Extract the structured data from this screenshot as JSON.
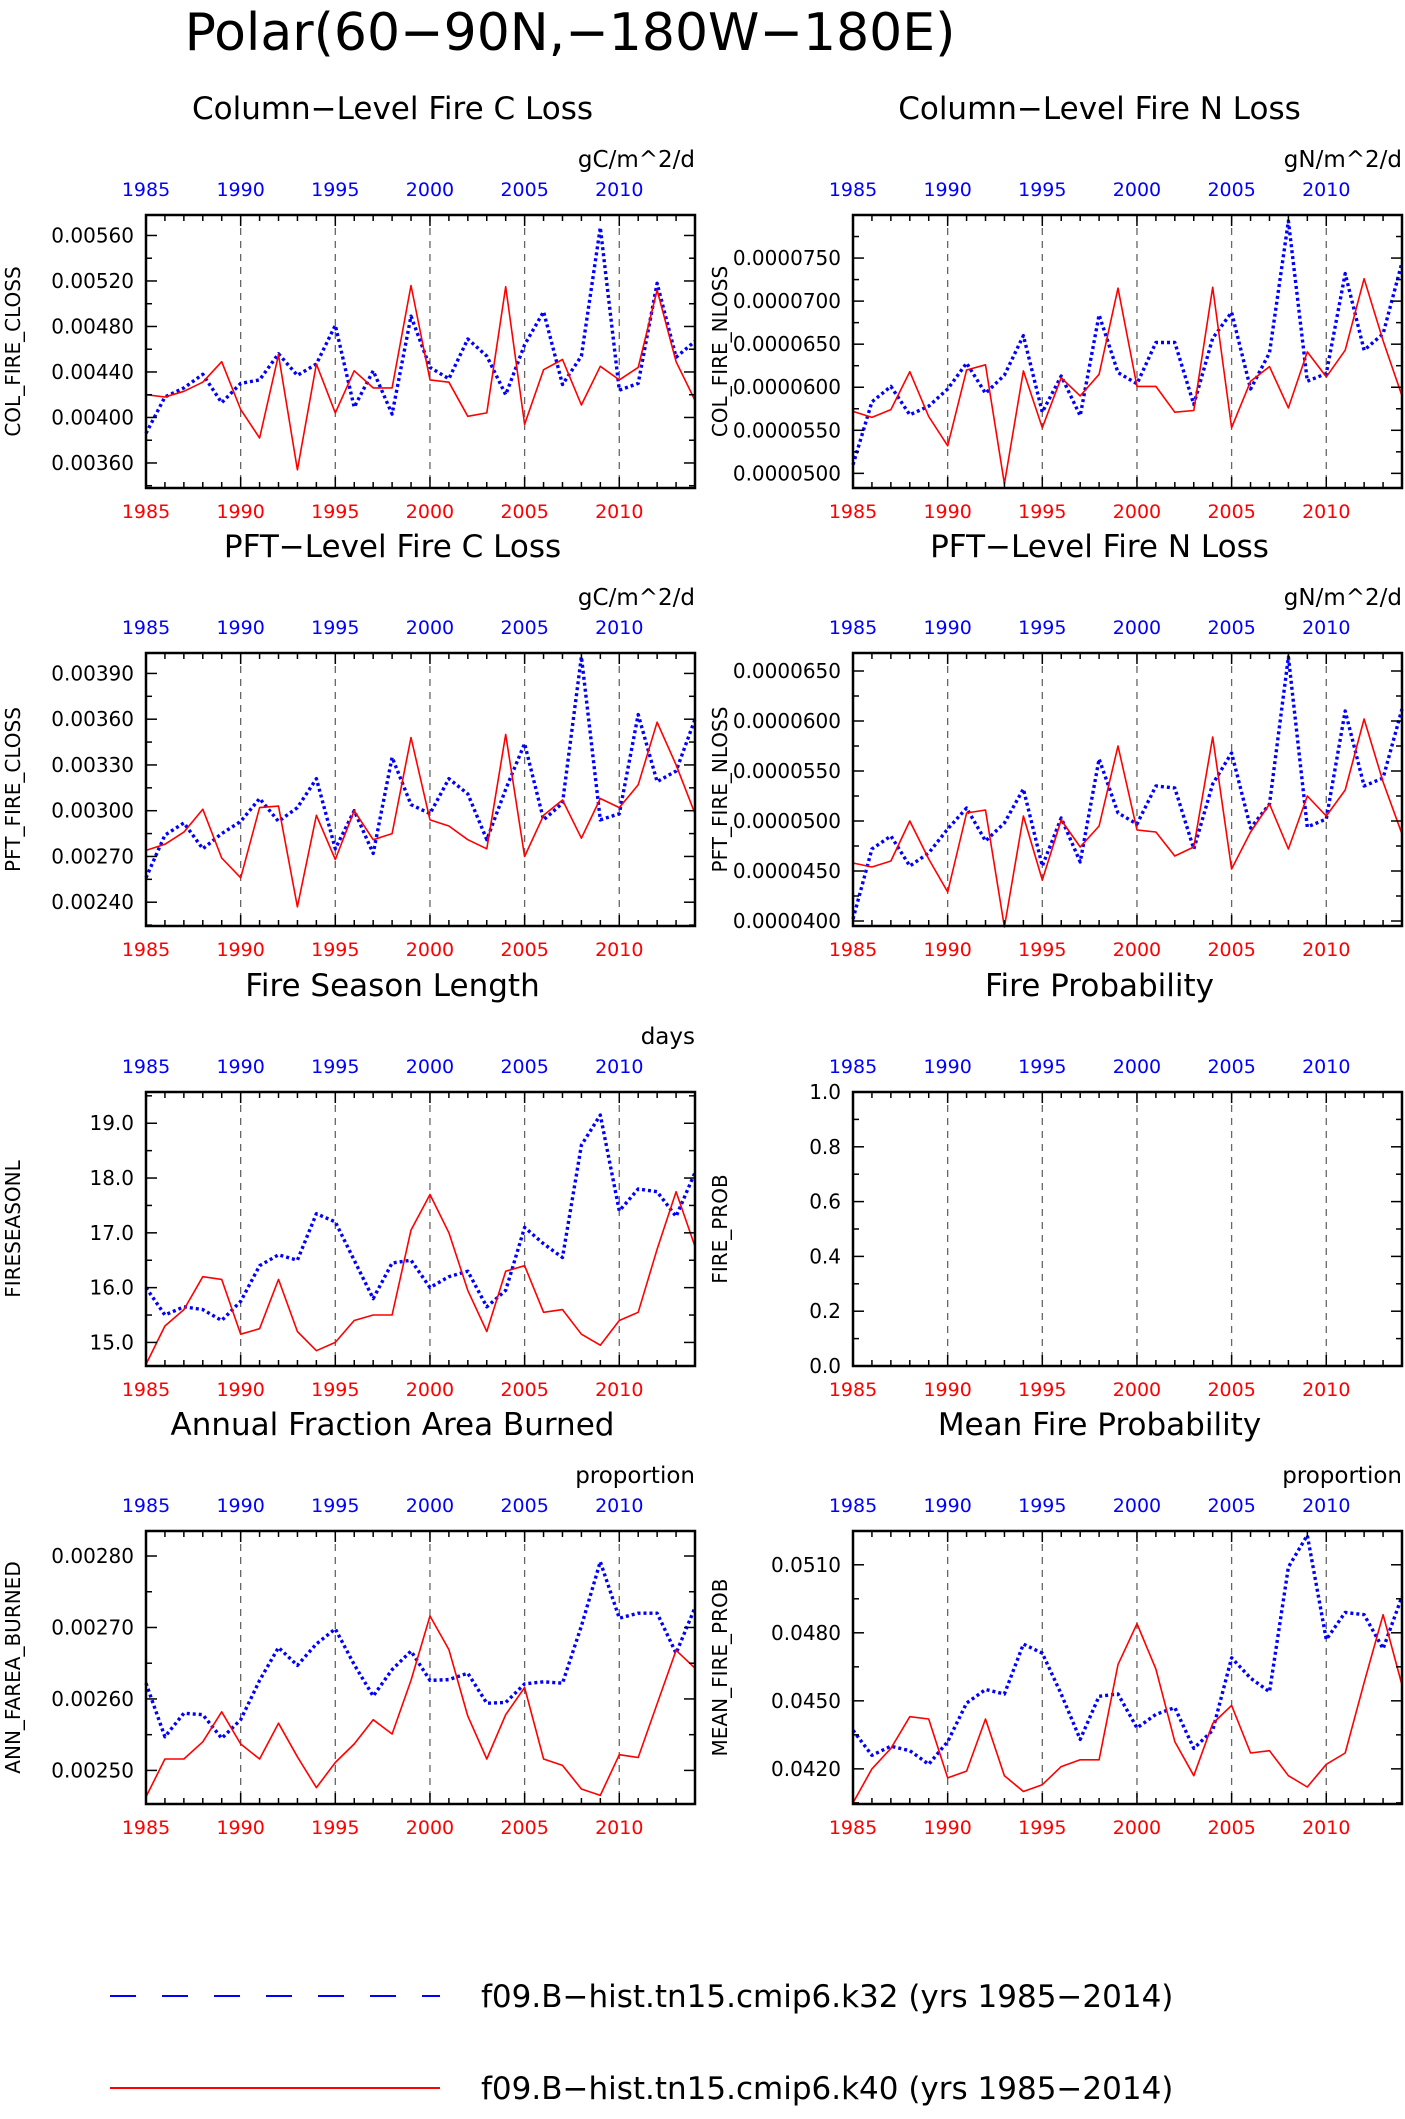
{
  "title": "Polar(60−90N,−180W−180E)",
  "colors": {
    "blue": "#0000ff",
    "red": "#ff0000",
    "axis": "#000000",
    "grid": "#666666"
  },
  "years_top": [
    "1985",
    "1990",
    "1995",
    "2000",
    "2005",
    "2010"
  ],
  "years_bottom": [
    "1985",
    "1990",
    "1995",
    "2000",
    "2005",
    "2010"
  ],
  "legend": [
    {
      "label": "f09.B−hist.tn15.cmip6.k32 (yrs 1985−2014)",
      "color": "#0000ff",
      "style": "dashed"
    },
    {
      "label": "f09.B−hist.tn15.cmip6.k40 (yrs 1985−2014)",
      "color": "#ff0000",
      "style": "solid"
    }
  ],
  "chart_data": [
    {
      "type": "line",
      "title": "Column−Level Fire C Loss",
      "units": "gC/m^2/d",
      "ylabel": "COL_FIRE_CLOSS",
      "xlim": [
        1985,
        2014
      ],
      "ylim": [
        0.00338,
        0.00578
      ],
      "yticks": [
        "0.00360",
        "0.00400",
        "0.00440",
        "0.00480",
        "0.00520",
        "0.00560"
      ],
      "x": [
        1985,
        1986,
        1987,
        1988,
        1989,
        1990,
        1991,
        1992,
        1993,
        1994,
        1995,
        1996,
        1997,
        1998,
        1999,
        2000,
        2001,
        2002,
        2003,
        2004,
        2005,
        2006,
        2007,
        2008,
        2009,
        2010,
        2011,
        2012,
        2013,
        2014
      ],
      "series": [
        {
          "name": "f09.B−hist.tn15.cmip6.k32",
          "color": "#0000ff",
          "style": "dotted",
          "values": [
            0.00386,
            0.00418,
            0.00426,
            0.00438,
            0.00413,
            0.0043,
            0.00433,
            0.00456,
            0.00437,
            0.00447,
            0.00481,
            0.00409,
            0.00441,
            0.00403,
            0.00489,
            0.00444,
            0.00434,
            0.00469,
            0.00454,
            0.0042,
            0.00464,
            0.00493,
            0.00429,
            0.00454,
            0.00567,
            0.00424,
            0.0043,
            0.00518,
            0.00453,
            0.00467
          ]
        },
        {
          "name": "f09.B−hist.tn15.cmip6.k40",
          "color": "#ff0000",
          "style": "solid",
          "values": [
            0.0042,
            0.00418,
            0.00423,
            0.00431,
            0.00449,
            0.00407,
            0.00382,
            0.00455,
            0.00354,
            0.00447,
            0.00404,
            0.00441,
            0.00426,
            0.00426,
            0.00516,
            0.00433,
            0.00431,
            0.00401,
            0.00404,
            0.00515,
            0.00394,
            0.00442,
            0.00451,
            0.00411,
            0.00445,
            0.00433,
            0.00444,
            0.00512,
            0.00449,
            0.00415
          ]
        }
      ]
    },
    {
      "type": "line",
      "title": "Column−Level Fire N Loss",
      "units": "gN/m^2/d",
      "ylabel": "COL_FIRE_NLOSS",
      "xlim": [
        1985,
        2014
      ],
      "ylim": [
        4.83e-05,
        8e-05
      ],
      "yticks": [
        "0.0000500",
        "0.0000550",
        "0.0000600",
        "0.0000650",
        "0.0000700",
        "0.0000750"
      ],
      "x": [
        1985,
        1986,
        1987,
        1988,
        1989,
        1990,
        1991,
        1992,
        1993,
        1994,
        1995,
        1996,
        1997,
        1998,
        1999,
        2000,
        2001,
        2002,
        2003,
        2004,
        2005,
        2006,
        2007,
        2008,
        2009,
        2010,
        2011,
        2012,
        2013,
        2014
      ],
      "series": [
        {
          "name": "f09.B−hist.tn15.cmip6.k32",
          "color": "#0000ff",
          "style": "dotted",
          "values": [
            5.1e-05,
            5.83e-05,
            6.01e-05,
            5.68e-05,
            5.78e-05,
            5.98e-05,
            6.28e-05,
            5.93e-05,
            6.14e-05,
            6.6e-05,
            5.71e-05,
            6.13e-05,
            5.67e-05,
            6.84e-05,
            6.17e-05,
            6.04e-05,
            6.52e-05,
            6.52e-05,
            5.8e-05,
            6.57e-05,
            6.87e-05,
            5.98e-05,
            6.4e-05,
            7.93e-05,
            6.07e-05,
            6.16e-05,
            7.32e-05,
            6.43e-05,
            6.62e-05,
            7.45e-05
          ]
        },
        {
          "name": "f09.B−hist.tn15.cmip6.k40",
          "color": "#ff0000",
          "style": "solid",
          "values": [
            5.72e-05,
            5.65e-05,
            5.74e-05,
            6.18e-05,
            5.66e-05,
            5.32e-05,
            6.2e-05,
            6.26e-05,
            4.88e-05,
            6.19e-05,
            5.53e-05,
            6.11e-05,
            5.9e-05,
            6.15e-05,
            7.15e-05,
            6.01e-05,
            6.01e-05,
            5.71e-05,
            5.73e-05,
            7.16e-05,
            5.53e-05,
            6.07e-05,
            6.24e-05,
            5.76e-05,
            6.41e-05,
            6.12e-05,
            6.43e-05,
            7.26e-05,
            6.54e-05,
            5.9e-05
          ]
        }
      ]
    },
    {
      "type": "line",
      "title": "PFT−Level Fire C Loss",
      "units": "gC/m^2/d",
      "ylabel": "PFT_FIRE_CLOSS",
      "xlim": [
        1985,
        2014
      ],
      "ylim": [
        0.002244,
        0.004034
      ],
      "yticks": [
        "0.00240",
        "0.00270",
        "0.00300",
        "0.00330",
        "0.00360",
        "0.00390"
      ],
      "x": [
        1985,
        1986,
        1987,
        1988,
        1989,
        1990,
        1991,
        1992,
        1993,
        1994,
        1995,
        1996,
        1997,
        1998,
        1999,
        2000,
        2001,
        2002,
        2003,
        2004,
        2005,
        2006,
        2007,
        2008,
        2009,
        2010,
        2011,
        2012,
        2013,
        2014
      ],
      "series": [
        {
          "name": "f09.B−hist.tn15.cmip6.k32",
          "color": "#0000ff",
          "style": "dotted",
          "values": [
            0.00256,
            0.00284,
            0.00292,
            0.00275,
            0.00285,
            0.00293,
            0.00308,
            0.00293,
            0.00302,
            0.00321,
            0.00275,
            0.003,
            0.00272,
            0.00335,
            0.00304,
            0.00298,
            0.00321,
            0.00311,
            0.00281,
            0.00314,
            0.00344,
            0.00294,
            0.00305,
            0.00401,
            0.00294,
            0.00298,
            0.00363,
            0.00319,
            0.00326,
            0.0036
          ]
        },
        {
          "name": "f09.B−hist.tn15.cmip6.k40",
          "color": "#ff0000",
          "style": "solid",
          "values": [
            0.00274,
            0.00278,
            0.00286,
            0.00301,
            0.00269,
            0.00256,
            0.00302,
            0.00303,
            0.00237,
            0.00297,
            0.00268,
            0.003,
            0.00281,
            0.00285,
            0.00348,
            0.00294,
            0.0029,
            0.00281,
            0.00275,
            0.0035,
            0.0027,
            0.00297,
            0.00307,
            0.00282,
            0.00308,
            0.00302,
            0.00317,
            0.00358,
            0.0033,
            0.00298
          ]
        }
      ]
    },
    {
      "type": "line",
      "title": "PFT−Level Fire N Loss",
      "units": "gN/m^2/d",
      "ylabel": "PFT_FIRE_NLOSS",
      "xlim": [
        1985,
        2014
      ],
      "ylim": [
        3.95e-05,
        6.68e-05
      ],
      "yticks": [
        "0.0000400",
        "0.0000450",
        "0.0000500",
        "0.0000550",
        "0.0000600",
        "0.0000650"
      ],
      "x": [
        1985,
        1986,
        1987,
        1988,
        1989,
        1990,
        1991,
        1992,
        1993,
        1994,
        1995,
        1996,
        1997,
        1998,
        1999,
        2000,
        2001,
        2002,
        2003,
        2004,
        2005,
        2006,
        2007,
        2008,
        2009,
        2010,
        2011,
        2012,
        2013,
        2014
      ],
      "series": [
        {
          "name": "f09.B−hist.tn15.cmip6.k32",
          "color": "#0000ff",
          "style": "dotted",
          "values": [
            4.02e-05,
            4.72e-05,
            4.85e-05,
            4.55e-05,
            4.68e-05,
            4.92e-05,
            5.13e-05,
            4.8e-05,
            4.98e-05,
            5.32e-05,
            4.55e-05,
            5.03e-05,
            4.59e-05,
            5.62e-05,
            5.08e-05,
            4.97e-05,
            5.35e-05,
            5.33e-05,
            4.72e-05,
            5.37e-05,
            5.68e-05,
            4.93e-05,
            5.17e-05,
            6.64e-05,
            4.94e-05,
            5.02e-05,
            6.1e-05,
            5.35e-05,
            5.43e-05,
            6.12e-05
          ]
        },
        {
          "name": "f09.B−hist.tn15.cmip6.k40",
          "color": "#ff0000",
          "style": "solid",
          "values": [
            4.58e-05,
            4.54e-05,
            4.6e-05,
            5e-05,
            4.62e-05,
            4.29e-05,
            5.08e-05,
            5.11e-05,
            3.94e-05,
            5.05e-05,
            4.41e-05,
            5.01e-05,
            4.74e-05,
            4.95e-05,
            5.75e-05,
            4.91e-05,
            4.89e-05,
            4.65e-05,
            4.74e-05,
            5.84e-05,
            4.52e-05,
            4.89e-05,
            5.17e-05,
            4.72e-05,
            5.25e-05,
            5.05e-05,
            5.31e-05,
            6.02e-05,
            5.39e-05,
            4.87e-05
          ]
        }
      ]
    },
    {
      "type": "line",
      "title": "Fire Season Length",
      "units": "days",
      "ylabel": "FIRESEASONL",
      "xlim": [
        1985,
        2014
      ],
      "ylim": [
        14.57,
        19.57
      ],
      "yticks": [
        "15.0",
        "16.0",
        "17.0",
        "18.0",
        "19.0"
      ],
      "x": [
        1985,
        1986,
        1987,
        1988,
        1989,
        1990,
        1991,
        1992,
        1993,
        1994,
        1995,
        1996,
        1997,
        1998,
        1999,
        2000,
        2001,
        2002,
        2003,
        2004,
        2005,
        2006,
        2007,
        2008,
        2009,
        2010,
        2011,
        2012,
        2013,
        2014
      ],
      "series": [
        {
          "name": "f09.B−hist.tn15.cmip6.k32",
          "color": "#0000ff",
          "style": "dotted",
          "values": [
            16.0,
            15.5,
            15.65,
            15.6,
            15.4,
            15.75,
            16.4,
            16.6,
            16.5,
            17.35,
            17.2,
            16.5,
            15.8,
            16.45,
            16.5,
            16.0,
            16.2,
            16.3,
            15.65,
            15.95,
            17.1,
            16.8,
            16.55,
            18.6,
            19.15,
            17.4,
            17.8,
            17.75,
            17.3,
            18.1
          ]
        },
        {
          "name": "f09.B−hist.tn15.cmip6.k40",
          "color": "#ff0000",
          "style": "solid",
          "values": [
            14.6,
            15.3,
            15.6,
            16.2,
            16.15,
            15.15,
            15.25,
            16.15,
            15.2,
            14.85,
            15.0,
            15.4,
            15.5,
            15.5,
            17.05,
            17.7,
            17.0,
            15.95,
            15.2,
            16.3,
            16.4,
            15.55,
            15.6,
            15.15,
            14.95,
            15.4,
            15.55,
            16.7,
            17.75,
            16.75
          ]
        }
      ]
    },
    {
      "type": "line",
      "title": "Fire Probability",
      "units": "",
      "ylabel": "FIRE_PROB",
      "xlim": [
        1985,
        2014
      ],
      "ylim": [
        0,
        1
      ],
      "yticks": [
        "0.0",
        "0.2",
        "0.4",
        "0.6",
        "0.8",
        "1.0"
      ],
      "x": [],
      "series": []
    },
    {
      "type": "line",
      "title": "Annual Fraction Area Burned",
      "units": "proportion",
      "ylabel": "ANN_FAREA_BURNED",
      "xlim": [
        1985,
        2014
      ],
      "ylim": [
        0.002453,
        0.002835
      ],
      "yticks": [
        "0.00250",
        "0.00260",
        "0.00270",
        "0.00280"
      ],
      "x": [
        1985,
        1986,
        1987,
        1988,
        1989,
        1990,
        1991,
        1992,
        1993,
        1994,
        1995,
        1996,
        1997,
        1998,
        1999,
        2000,
        2001,
        2002,
        2003,
        2004,
        2005,
        2006,
        2007,
        2008,
        2009,
        2010,
        2011,
        2012,
        2013,
        2014
      ],
      "series": [
        {
          "name": "f09.B−hist.tn15.cmip6.k32",
          "color": "#0000ff",
          "style": "dotted",
          "values": [
            0.002622,
            0.002547,
            0.00258,
            0.002578,
            0.002545,
            0.002571,
            0.002626,
            0.002672,
            0.002647,
            0.002677,
            0.002698,
            0.002648,
            0.002604,
            0.002641,
            0.002667,
            0.002626,
            0.002627,
            0.002636,
            0.002594,
            0.002595,
            0.002621,
            0.002624,
            0.002622,
            0.002702,
            0.002792,
            0.002713,
            0.00272,
            0.00272,
            0.002664,
            0.002728
          ]
        },
        {
          "name": "f09.B−hist.tn15.cmip6.k40",
          "color": "#ff0000",
          "style": "solid",
          "values": [
            0.002463,
            0.002516,
            0.002516,
            0.00254,
            0.002582,
            0.002537,
            0.002516,
            0.002566,
            0.002519,
            0.002476,
            0.002511,
            0.002537,
            0.002571,
            0.002551,
            0.002626,
            0.002716,
            0.002669,
            0.002576,
            0.002516,
            0.002578,
            0.002616,
            0.002516,
            0.002507,
            0.002474,
            0.002465,
            0.002522,
            0.002518,
            0.002593,
            0.002668,
            0.002643
          ]
        }
      ]
    },
    {
      "type": "line",
      "title": "Mean Fire Probability",
      "units": "proportion",
      "ylabel": "MEAN_FIRE_PROB",
      "xlim": [
        1985,
        2014
      ],
      "ylim": [
        0.04045,
        0.05249
      ],
      "yticks": [
        "0.0420",
        "0.0450",
        "0.0480",
        "0.0510"
      ],
      "x": [
        1985,
        1986,
        1987,
        1988,
        1989,
        1990,
        1991,
        1992,
        1993,
        1994,
        1995,
        1996,
        1997,
        1998,
        1999,
        2000,
        2001,
        2002,
        2003,
        2004,
        2005,
        2006,
        2007,
        2008,
        2009,
        2010,
        2011,
        2012,
        2013,
        2014
      ],
      "series": [
        {
          "name": "f09.B−hist.tn15.cmip6.k32",
          "color": "#0000ff",
          "style": "dotted",
          "values": [
            0.0437,
            0.0426,
            0.043,
            0.0428,
            0.0422,
            0.0432,
            0.0449,
            0.0455,
            0.0453,
            0.0475,
            0.0471,
            0.0453,
            0.0433,
            0.0452,
            0.0453,
            0.0438,
            0.0444,
            0.0447,
            0.0429,
            0.0437,
            0.0469,
            0.046,
            0.0454,
            0.0509,
            0.0523,
            0.0477,
            0.0489,
            0.0488,
            0.0473,
            0.0496
          ]
        },
        {
          "name": "f09.B−hist.tn15.cmip6.k40",
          "color": "#ff0000",
          "style": "solid",
          "values": [
            0.0405,
            0.042,
            0.0429,
            0.0443,
            0.0442,
            0.0416,
            0.0419,
            0.0442,
            0.0417,
            0.041,
            0.0413,
            0.0421,
            0.0424,
            0.0424,
            0.0466,
            0.0484,
            0.0464,
            0.0432,
            0.0417,
            0.044,
            0.0448,
            0.0427,
            0.0428,
            0.0417,
            0.0412,
            0.0422,
            0.0427,
            0.0458,
            0.0488,
            0.0457
          ]
        }
      ]
    }
  ]
}
